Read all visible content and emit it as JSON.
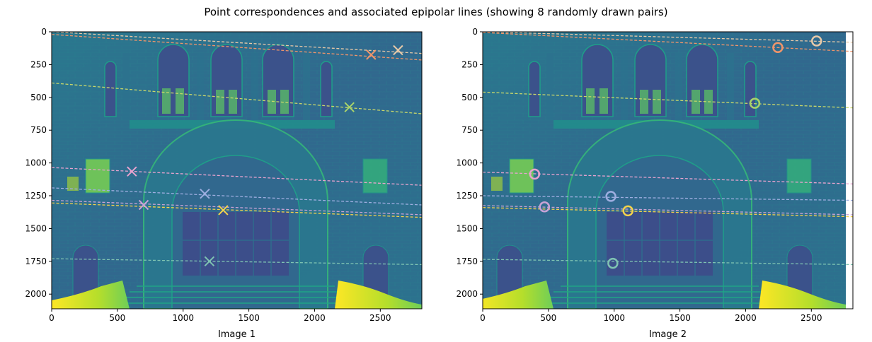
{
  "figure": {
    "suptitle": "Point correspondences and associated epipolar lines (showing 8 randomly drawn pairs)"
  },
  "chart_data": [
    {
      "type": "scatter",
      "xlabel": "Image 1",
      "ylabel": "",
      "xlim": [
        0,
        2816
      ],
      "ylim": [
        2112,
        0
      ],
      "x_ticks": [
        0,
        500,
        1000,
        1500,
        2000,
        2500
      ],
      "y_ticks": [
        0,
        250,
        500,
        750,
        1000,
        1250,
        1500,
        1750,
        2000
      ],
      "marker": "x",
      "background": "grayscale photo of stone building facade with arched entrance (viridis colormap)",
      "points": [
        {
          "x": 2635,
          "y": 140,
          "color": "#e8c9a8"
        },
        {
          "x": 2430,
          "y": 175,
          "color": "#f0956a"
        },
        {
          "x": 2265,
          "y": 575,
          "color": "#a9d46a"
        },
        {
          "x": 610,
          "y": 1065,
          "color": "#e8a3cf"
        },
        {
          "x": 1165,
          "y": 1235,
          "color": "#9eaee0"
        },
        {
          "x": 700,
          "y": 1320,
          "color": "#c9a3d6"
        },
        {
          "x": 1305,
          "y": 1360,
          "color": "#f5d34b"
        },
        {
          "x": 1200,
          "y": 1750,
          "color": "#7fc4b2"
        }
      ],
      "lines": [
        {
          "y_at_xmin": 0,
          "y_at_xmax": 165,
          "color": "#e8c9a8"
        },
        {
          "y_at_xmin": 20,
          "y_at_xmax": 215,
          "color": "#f0956a"
        },
        {
          "y_at_xmin": 390,
          "y_at_xmax": 625,
          "color": "#c9d86a"
        },
        {
          "y_at_xmin": 1035,
          "y_at_xmax": 1170,
          "color": "#e8a3cf"
        },
        {
          "y_at_xmin": 1190,
          "y_at_xmax": 1320,
          "color": "#9eaee0"
        },
        {
          "y_at_xmin": 1285,
          "y_at_xmax": 1395,
          "color": "#c9a3d6"
        },
        {
          "y_at_xmin": 1305,
          "y_at_xmax": 1415,
          "color": "#f5d34b"
        },
        {
          "y_at_xmin": 1730,
          "y_at_xmax": 1775,
          "color": "#7fc4b2"
        }
      ]
    },
    {
      "type": "scatter",
      "xlabel": "Image 2",
      "ylabel": "",
      "xlim": [
        0,
        2816
      ],
      "ylim": [
        2112,
        0
      ],
      "x_ticks": [
        0,
        500,
        1000,
        1500,
        2000,
        2500
      ],
      "y_ticks": [
        0,
        250,
        500,
        750,
        1000,
        1250,
        1500,
        1750,
        2000
      ],
      "marker": "o",
      "background": "grayscale photo of stone building facade with arched entrance (viridis colormap)",
      "points": [
        {
          "x": 2540,
          "y": 70,
          "color": "#e8c9a8"
        },
        {
          "x": 2245,
          "y": 120,
          "color": "#f0956a"
        },
        {
          "x": 2070,
          "y": 545,
          "color": "#a9d46a"
        },
        {
          "x": 395,
          "y": 1085,
          "color": "#e8a3cf"
        },
        {
          "x": 975,
          "y": 1255,
          "color": "#9eaee0"
        },
        {
          "x": 470,
          "y": 1335,
          "color": "#c9a3d6"
        },
        {
          "x": 1105,
          "y": 1365,
          "color": "#f5d34b"
        },
        {
          "x": 990,
          "y": 1765,
          "color": "#7fc4b2"
        }
      ],
      "lines": [
        {
          "y_at_xmin": 0,
          "y_at_xmax": 80,
          "color": "#e8c9a8"
        },
        {
          "y_at_xmin": 5,
          "y_at_xmax": 150,
          "color": "#f0956a"
        },
        {
          "y_at_xmin": 460,
          "y_at_xmax": 580,
          "color": "#c9d86a"
        },
        {
          "y_at_xmin": 1070,
          "y_at_xmax": 1160,
          "color": "#e8a3cf"
        },
        {
          "y_at_xmin": 1250,
          "y_at_xmax": 1285,
          "color": "#9eaee0"
        },
        {
          "y_at_xmin": 1325,
          "y_at_xmax": 1395,
          "color": "#c9a3d6"
        },
        {
          "y_at_xmin": 1340,
          "y_at_xmax": 1410,
          "color": "#f5d34b"
        },
        {
          "y_at_xmin": 1735,
          "y_at_xmax": 1775,
          "color": "#7fc4b2"
        }
      ]
    }
  ]
}
